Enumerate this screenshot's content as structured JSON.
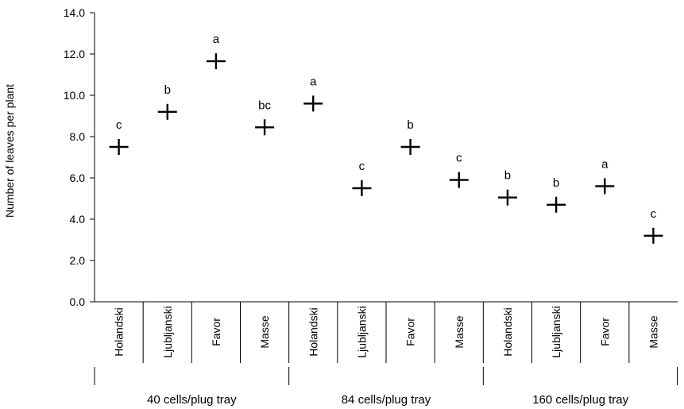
{
  "chart_data": {
    "type": "scatter",
    "marker": "cross",
    "ylabel": "Number of leaves per plant",
    "ylim": [
      0,
      14
    ],
    "yticks": [
      "0.0",
      "2.0",
      "4.0",
      "6.0",
      "8.0",
      "10.0",
      "12.0",
      "14.0"
    ],
    "ytick_values": [
      0,
      2,
      4,
      6,
      8,
      10,
      12,
      14
    ],
    "grid": false,
    "groups": [
      {
        "label": "40 cells/plug tray",
        "points": [
          {
            "category": "Holandski",
            "value": 7.5,
            "letter": "c"
          },
          {
            "category": "Ljubljanski",
            "value": 9.2,
            "letter": "b"
          },
          {
            "category": "Favor",
            "value": 11.65,
            "letter": "a"
          },
          {
            "category": "Masse",
            "value": 8.45,
            "letter": "bc"
          }
        ]
      },
      {
        "label": "84 cells/plug tray",
        "points": [
          {
            "category": "Holandski",
            "value": 9.6,
            "letter": "a"
          },
          {
            "category": "Ljubljanski",
            "value": 5.5,
            "letter": "c"
          },
          {
            "category": "Favor",
            "value": 7.5,
            "letter": "b"
          },
          {
            "category": "Masse",
            "value": 5.9,
            "letter": "c"
          }
        ]
      },
      {
        "label": "160 cells/plug tray",
        "points": [
          {
            "category": "Holandski",
            "value": 5.05,
            "letter": "b"
          },
          {
            "category": "Ljubljanski",
            "value": 4.7,
            "letter": "b"
          },
          {
            "category": "Favor",
            "value": 5.6,
            "letter": "a"
          },
          {
            "category": "Masse",
            "value": 3.2,
            "letter": "c"
          }
        ]
      }
    ]
  }
}
